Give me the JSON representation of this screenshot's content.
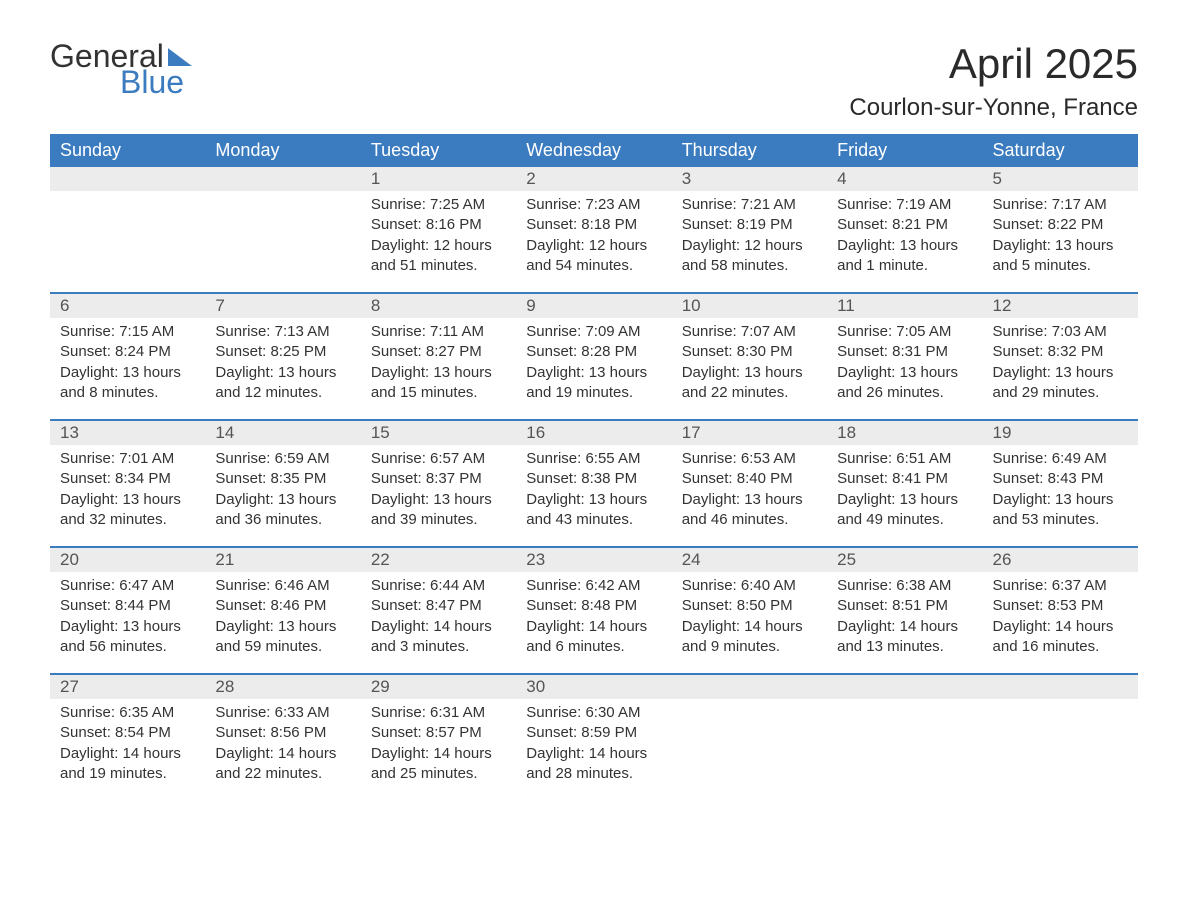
{
  "logo": {
    "text1": "General",
    "text2": "Blue",
    "color_dark": "#333333",
    "color_blue": "#3b7bbf"
  },
  "title": "April 2025",
  "location": "Courlon-sur-Yonne, France",
  "colors": {
    "header_bg": "#3b7bbf",
    "header_text": "#ffffff",
    "daynum_bg": "#ececec",
    "border": "#3b7bbf",
    "text": "#333333",
    "bg": "#ffffff"
  },
  "fonts": {
    "title_size": 42,
    "location_size": 24,
    "dow_size": 18,
    "cell_size": 15
  },
  "days_of_week": [
    "Sunday",
    "Monday",
    "Tuesday",
    "Wednesday",
    "Thursday",
    "Friday",
    "Saturday"
  ],
  "weeks": [
    {
      "nums": [
        "",
        "",
        "1",
        "2",
        "3",
        "4",
        "5"
      ],
      "cells": [
        null,
        null,
        {
          "sunrise": "Sunrise: 7:25 AM",
          "sunset": "Sunset: 8:16 PM",
          "day1": "Daylight: 12 hours",
          "day2": "and 51 minutes."
        },
        {
          "sunrise": "Sunrise: 7:23 AM",
          "sunset": "Sunset: 8:18 PM",
          "day1": "Daylight: 12 hours",
          "day2": "and 54 minutes."
        },
        {
          "sunrise": "Sunrise: 7:21 AM",
          "sunset": "Sunset: 8:19 PM",
          "day1": "Daylight: 12 hours",
          "day2": "and 58 minutes."
        },
        {
          "sunrise": "Sunrise: 7:19 AM",
          "sunset": "Sunset: 8:21 PM",
          "day1": "Daylight: 13 hours",
          "day2": "and 1 minute."
        },
        {
          "sunrise": "Sunrise: 7:17 AM",
          "sunset": "Sunset: 8:22 PM",
          "day1": "Daylight: 13 hours",
          "day2": "and 5 minutes."
        }
      ]
    },
    {
      "nums": [
        "6",
        "7",
        "8",
        "9",
        "10",
        "11",
        "12"
      ],
      "cells": [
        {
          "sunrise": "Sunrise: 7:15 AM",
          "sunset": "Sunset: 8:24 PM",
          "day1": "Daylight: 13 hours",
          "day2": "and 8 minutes."
        },
        {
          "sunrise": "Sunrise: 7:13 AM",
          "sunset": "Sunset: 8:25 PM",
          "day1": "Daylight: 13 hours",
          "day2": "and 12 minutes."
        },
        {
          "sunrise": "Sunrise: 7:11 AM",
          "sunset": "Sunset: 8:27 PM",
          "day1": "Daylight: 13 hours",
          "day2": "and 15 minutes."
        },
        {
          "sunrise": "Sunrise: 7:09 AM",
          "sunset": "Sunset: 8:28 PM",
          "day1": "Daylight: 13 hours",
          "day2": "and 19 minutes."
        },
        {
          "sunrise": "Sunrise: 7:07 AM",
          "sunset": "Sunset: 8:30 PM",
          "day1": "Daylight: 13 hours",
          "day2": "and 22 minutes."
        },
        {
          "sunrise": "Sunrise: 7:05 AM",
          "sunset": "Sunset: 8:31 PM",
          "day1": "Daylight: 13 hours",
          "day2": "and 26 minutes."
        },
        {
          "sunrise": "Sunrise: 7:03 AM",
          "sunset": "Sunset: 8:32 PM",
          "day1": "Daylight: 13 hours",
          "day2": "and 29 minutes."
        }
      ]
    },
    {
      "nums": [
        "13",
        "14",
        "15",
        "16",
        "17",
        "18",
        "19"
      ],
      "cells": [
        {
          "sunrise": "Sunrise: 7:01 AM",
          "sunset": "Sunset: 8:34 PM",
          "day1": "Daylight: 13 hours",
          "day2": "and 32 minutes."
        },
        {
          "sunrise": "Sunrise: 6:59 AM",
          "sunset": "Sunset: 8:35 PM",
          "day1": "Daylight: 13 hours",
          "day2": "and 36 minutes."
        },
        {
          "sunrise": "Sunrise: 6:57 AM",
          "sunset": "Sunset: 8:37 PM",
          "day1": "Daylight: 13 hours",
          "day2": "and 39 minutes."
        },
        {
          "sunrise": "Sunrise: 6:55 AM",
          "sunset": "Sunset: 8:38 PM",
          "day1": "Daylight: 13 hours",
          "day2": "and 43 minutes."
        },
        {
          "sunrise": "Sunrise: 6:53 AM",
          "sunset": "Sunset: 8:40 PM",
          "day1": "Daylight: 13 hours",
          "day2": "and 46 minutes."
        },
        {
          "sunrise": "Sunrise: 6:51 AM",
          "sunset": "Sunset: 8:41 PM",
          "day1": "Daylight: 13 hours",
          "day2": "and 49 minutes."
        },
        {
          "sunrise": "Sunrise: 6:49 AM",
          "sunset": "Sunset: 8:43 PM",
          "day1": "Daylight: 13 hours",
          "day2": "and 53 minutes."
        }
      ]
    },
    {
      "nums": [
        "20",
        "21",
        "22",
        "23",
        "24",
        "25",
        "26"
      ],
      "cells": [
        {
          "sunrise": "Sunrise: 6:47 AM",
          "sunset": "Sunset: 8:44 PM",
          "day1": "Daylight: 13 hours",
          "day2": "and 56 minutes."
        },
        {
          "sunrise": "Sunrise: 6:46 AM",
          "sunset": "Sunset: 8:46 PM",
          "day1": "Daylight: 13 hours",
          "day2": "and 59 minutes."
        },
        {
          "sunrise": "Sunrise: 6:44 AM",
          "sunset": "Sunset: 8:47 PM",
          "day1": "Daylight: 14 hours",
          "day2": "and 3 minutes."
        },
        {
          "sunrise": "Sunrise: 6:42 AM",
          "sunset": "Sunset: 8:48 PM",
          "day1": "Daylight: 14 hours",
          "day2": "and 6 minutes."
        },
        {
          "sunrise": "Sunrise: 6:40 AM",
          "sunset": "Sunset: 8:50 PM",
          "day1": "Daylight: 14 hours",
          "day2": "and 9 minutes."
        },
        {
          "sunrise": "Sunrise: 6:38 AM",
          "sunset": "Sunset: 8:51 PM",
          "day1": "Daylight: 14 hours",
          "day2": "and 13 minutes."
        },
        {
          "sunrise": "Sunrise: 6:37 AM",
          "sunset": "Sunset: 8:53 PM",
          "day1": "Daylight: 14 hours",
          "day2": "and 16 minutes."
        }
      ]
    },
    {
      "nums": [
        "27",
        "28",
        "29",
        "30",
        "",
        "",
        ""
      ],
      "cells": [
        {
          "sunrise": "Sunrise: 6:35 AM",
          "sunset": "Sunset: 8:54 PM",
          "day1": "Daylight: 14 hours",
          "day2": "and 19 minutes."
        },
        {
          "sunrise": "Sunrise: 6:33 AM",
          "sunset": "Sunset: 8:56 PM",
          "day1": "Daylight: 14 hours",
          "day2": "and 22 minutes."
        },
        {
          "sunrise": "Sunrise: 6:31 AM",
          "sunset": "Sunset: 8:57 PM",
          "day1": "Daylight: 14 hours",
          "day2": "and 25 minutes."
        },
        {
          "sunrise": "Sunrise: 6:30 AM",
          "sunset": "Sunset: 8:59 PM",
          "day1": "Daylight: 14 hours",
          "day2": "and 28 minutes."
        },
        null,
        null,
        null
      ]
    }
  ]
}
